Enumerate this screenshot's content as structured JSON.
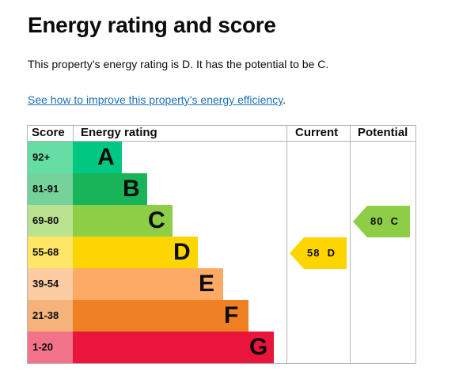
{
  "page": {
    "title": "Energy rating and score",
    "summary": "This property’s energy rating is D. It has the potential to be C.",
    "improve_link": "See how to improve this property’s energy efficiency",
    "improve_link_suffix": "."
  },
  "epc_chart": {
    "headers": {
      "score": "Score",
      "rating": "Energy rating",
      "current": "Current",
      "potential": "Potential"
    },
    "bands": [
      {
        "letter": "A",
        "range": "92+",
        "color": "#00c781",
        "score_bg": "#66dda4"
      },
      {
        "letter": "B",
        "range": "81-91",
        "color": "#19b459",
        "score_bg": "#75d29b"
      },
      {
        "letter": "C",
        "range": "69-80",
        "color": "#8dce46",
        "score_bg": "#bbe290"
      },
      {
        "letter": "D",
        "range": "55-68",
        "color": "#ffd500",
        "score_bg": "#ffe666"
      },
      {
        "letter": "E",
        "range": "39-54",
        "color": "#fcaa65",
        "score_bg": "#fdcca3"
      },
      {
        "letter": "F",
        "range": "21-38",
        "color": "#ef8023",
        "score_bg": "#f5b37b"
      },
      {
        "letter": "G",
        "range": "1-20",
        "color": "#e9153b",
        "score_bg": "#f2738a"
      }
    ],
    "current": {
      "score": 58,
      "letter": "D",
      "label": "58  D",
      "color": "#ffd500"
    },
    "potential": {
      "score": 80,
      "letter": "C",
      "label": "80  C",
      "color": "#8dce46"
    }
  }
}
